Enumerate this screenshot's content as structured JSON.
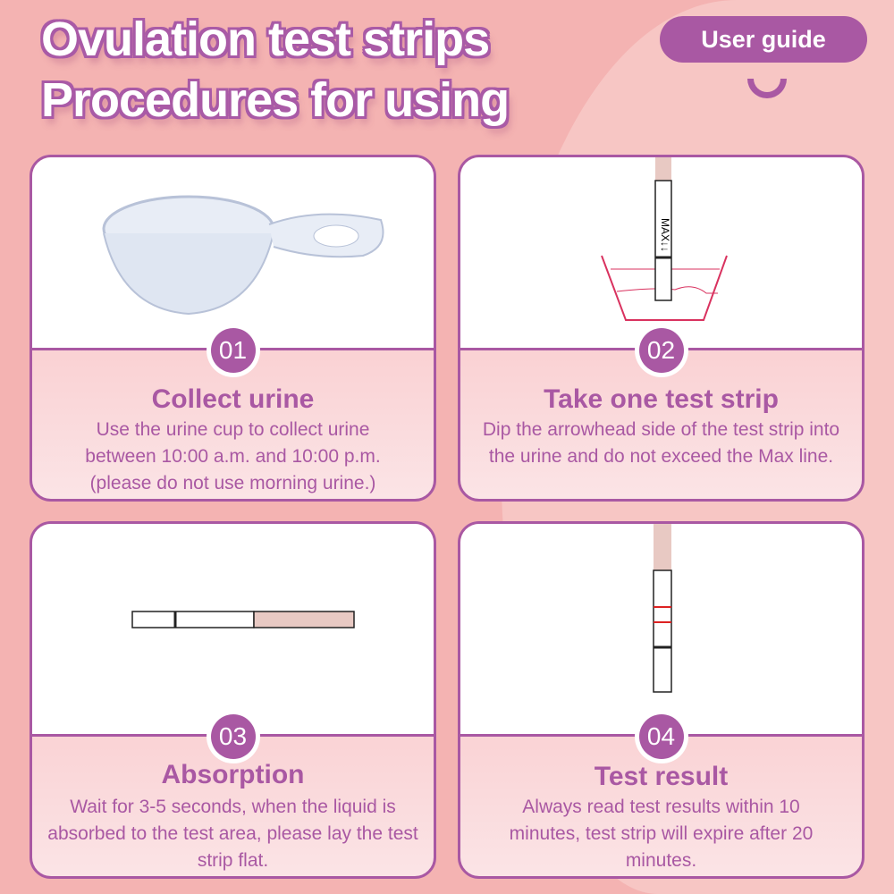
{
  "header": {
    "title_line1": "Ovulation test strips",
    "title_line2": "Procedures for using",
    "badge": "User guide"
  },
  "steps": [
    {
      "number": "01",
      "title": "Collect urine",
      "description": "Use the urine cup to collect urine between 10:00 a.m. and 10:00 p.m. (please do not use morning urine.)"
    },
    {
      "number": "02",
      "title": "Take one test strip",
      "description": "Dip the arrowhead side of the test strip into the urine and do not exceed the Max line.",
      "strip_label": "MAX↓↓"
    },
    {
      "number": "03",
      "title": "Absorption",
      "description": "Wait for 3-5 seconds, when the liquid is absorbed to the test area, please lay the test strip flat."
    },
    {
      "number": "04",
      "title": "Test result",
      "description": "Always read test results within 10 minutes, test strip will expire after 20 minutes."
    }
  ],
  "colors": {
    "accent": "#a958a3",
    "background": "#f4b3b2",
    "liquid": "#d9325f"
  }
}
